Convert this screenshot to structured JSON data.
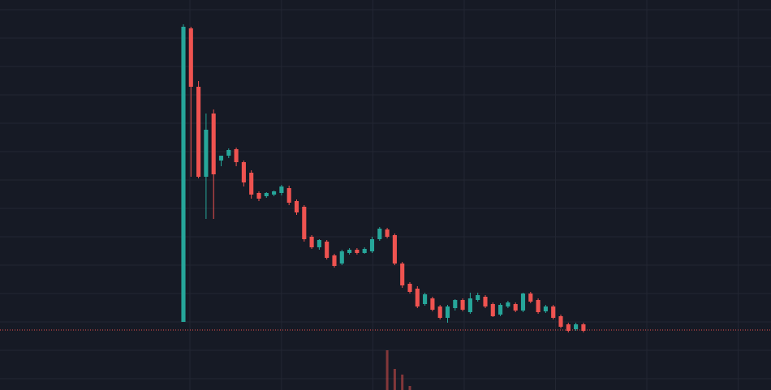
{
  "chart_data": {
    "type": "candlestick",
    "x": [
      0,
      1,
      2,
      3,
      4,
      5,
      6,
      7,
      8,
      9,
      10,
      11,
      12,
      13,
      14,
      15,
      16,
      17,
      18,
      19,
      20,
      21,
      22,
      23,
      24,
      25,
      26,
      27,
      28,
      29,
      30,
      31,
      32,
      33,
      34,
      35,
      36,
      37,
      38,
      39,
      40,
      41,
      42,
      43,
      44,
      45,
      46,
      47,
      48,
      49,
      50,
      51,
      52,
      53
    ],
    "open": [
      8.4,
      44.6,
      37.4,
      26.3,
      34.1,
      28.3,
      28.9,
      29.7,
      28.1,
      26.8,
      24.3,
      23.9,
      24.1,
      24.3,
      24.9,
      23.3,
      22.6,
      18.9,
      17.6,
      18.3,
      16.6,
      15.6,
      16.9,
      17.3,
      16.9,
      17.1,
      18.6,
      19.8,
      19.1,
      15.6,
      13.1,
      12.5,
      10.6,
      11.3,
      10.3,
      8.9,
      10.1,
      11.1,
      9.6,
      11.1,
      11.5,
      10.6,
      9.3,
      10.3,
      10.6,
      9.8,
      11.9,
      11.1,
      9.7,
      10.3,
      9.1,
      8.1,
      7.5,
      8.1
    ],
    "high": [
      45.1,
      44.8,
      38.1,
      34.1,
      34.6,
      28.9,
      29.8,
      29.9,
      28.3,
      27.1,
      24.5,
      24.4,
      24.6,
      25.3,
      25.2,
      23.5,
      22.8,
      19.1,
      18.6,
      18.5,
      16.8,
      17.3,
      17.5,
      17.5,
      17.6,
      18.9,
      20.1,
      20.0,
      19.3,
      15.8,
      13.3,
      12.8,
      12.0,
      11.5,
      10.5,
      10.5,
      11.2,
      11.3,
      12.0,
      12.0,
      11.7,
      10.8,
      10.7,
      11.0,
      10.8,
      12.0,
      12.1,
      11.3,
      10.5,
      10.5,
      9.3,
      8.3,
      8.3,
      8.3
    ],
    "low": [
      8.4,
      26.3,
      26.1,
      21.1,
      21.1,
      27.6,
      28.6,
      27.6,
      25.1,
      23.6,
      23.3,
      23.7,
      23.9,
      24.0,
      22.8,
      21.6,
      18.3,
      17.4,
      17.3,
      16.1,
      15.1,
      15.4,
      16.7,
      16.7,
      16.8,
      16.9,
      18.4,
      18.7,
      15.4,
      12.6,
      11.9,
      10.1,
      10.4,
      9.7,
      8.7,
      8.3,
      9.8,
      9.7,
      9.4,
      10.9,
      10.1,
      9.0,
      9.1,
      10.1,
      9.6,
      9.6,
      10.7,
      9.4,
      9.5,
      8.7,
      7.6,
      7.1,
      7.3,
      7.1
    ],
    "close": [
      44.8,
      37.4,
      26.3,
      32.1,
      26.6,
      28.9,
      29.6,
      28.1,
      25.6,
      24.1,
      23.6,
      24.3,
      24.5,
      25.1,
      23.1,
      21.9,
      18.6,
      17.6,
      18.5,
      16.3,
      15.3,
      17.1,
      17.3,
      16.9,
      17.4,
      18.6,
      19.9,
      18.9,
      15.6,
      12.9,
      12.1,
      10.3,
      11.8,
      9.9,
      8.9,
      10.3,
      11.1,
      9.9,
      11.3,
      11.7,
      10.3,
      9.1,
      10.5,
      10.8,
      9.8,
      11.9,
      10.9,
      9.6,
      10.3,
      8.9,
      7.8,
      7.3,
      8.1,
      7.3
    ],
    "volume": [
      null,
      null,
      null,
      null,
      null,
      null,
      null,
      null,
      null,
      null,
      null,
      null,
      null,
      null,
      null,
      null,
      null,
      null,
      null,
      null,
      null,
      null,
      null,
      null,
      null,
      null,
      null,
      49,
      26,
      19,
      5,
      null,
      null,
      null,
      null,
      null,
      null,
      null,
      null,
      null,
      null,
      null,
      null,
      null,
      null,
      null,
      null,
      null,
      null,
      null,
      null,
      null,
      null,
      null
    ],
    "vlim": [
      0,
      100
    ],
    "last_price": 7.4,
    "up_color": "#26a69a",
    "down_color": "#ef5350",
    "xlim": [
      -24.3,
      77.85
    ],
    "ylim": [
      0,
      48.1
    ],
    "xticks": [
      0.86,
      13,
      25.1,
      37.2,
      49.3,
      61.4,
      73.5
    ],
    "yticks": [
      1.4,
      4.9,
      8.4,
      11.9,
      15.4,
      18.9,
      22.4,
      25.9,
      29.4,
      32.9,
      36.4,
      39.9,
      43.4,
      46.9
    ],
    "grid": true
  }
}
